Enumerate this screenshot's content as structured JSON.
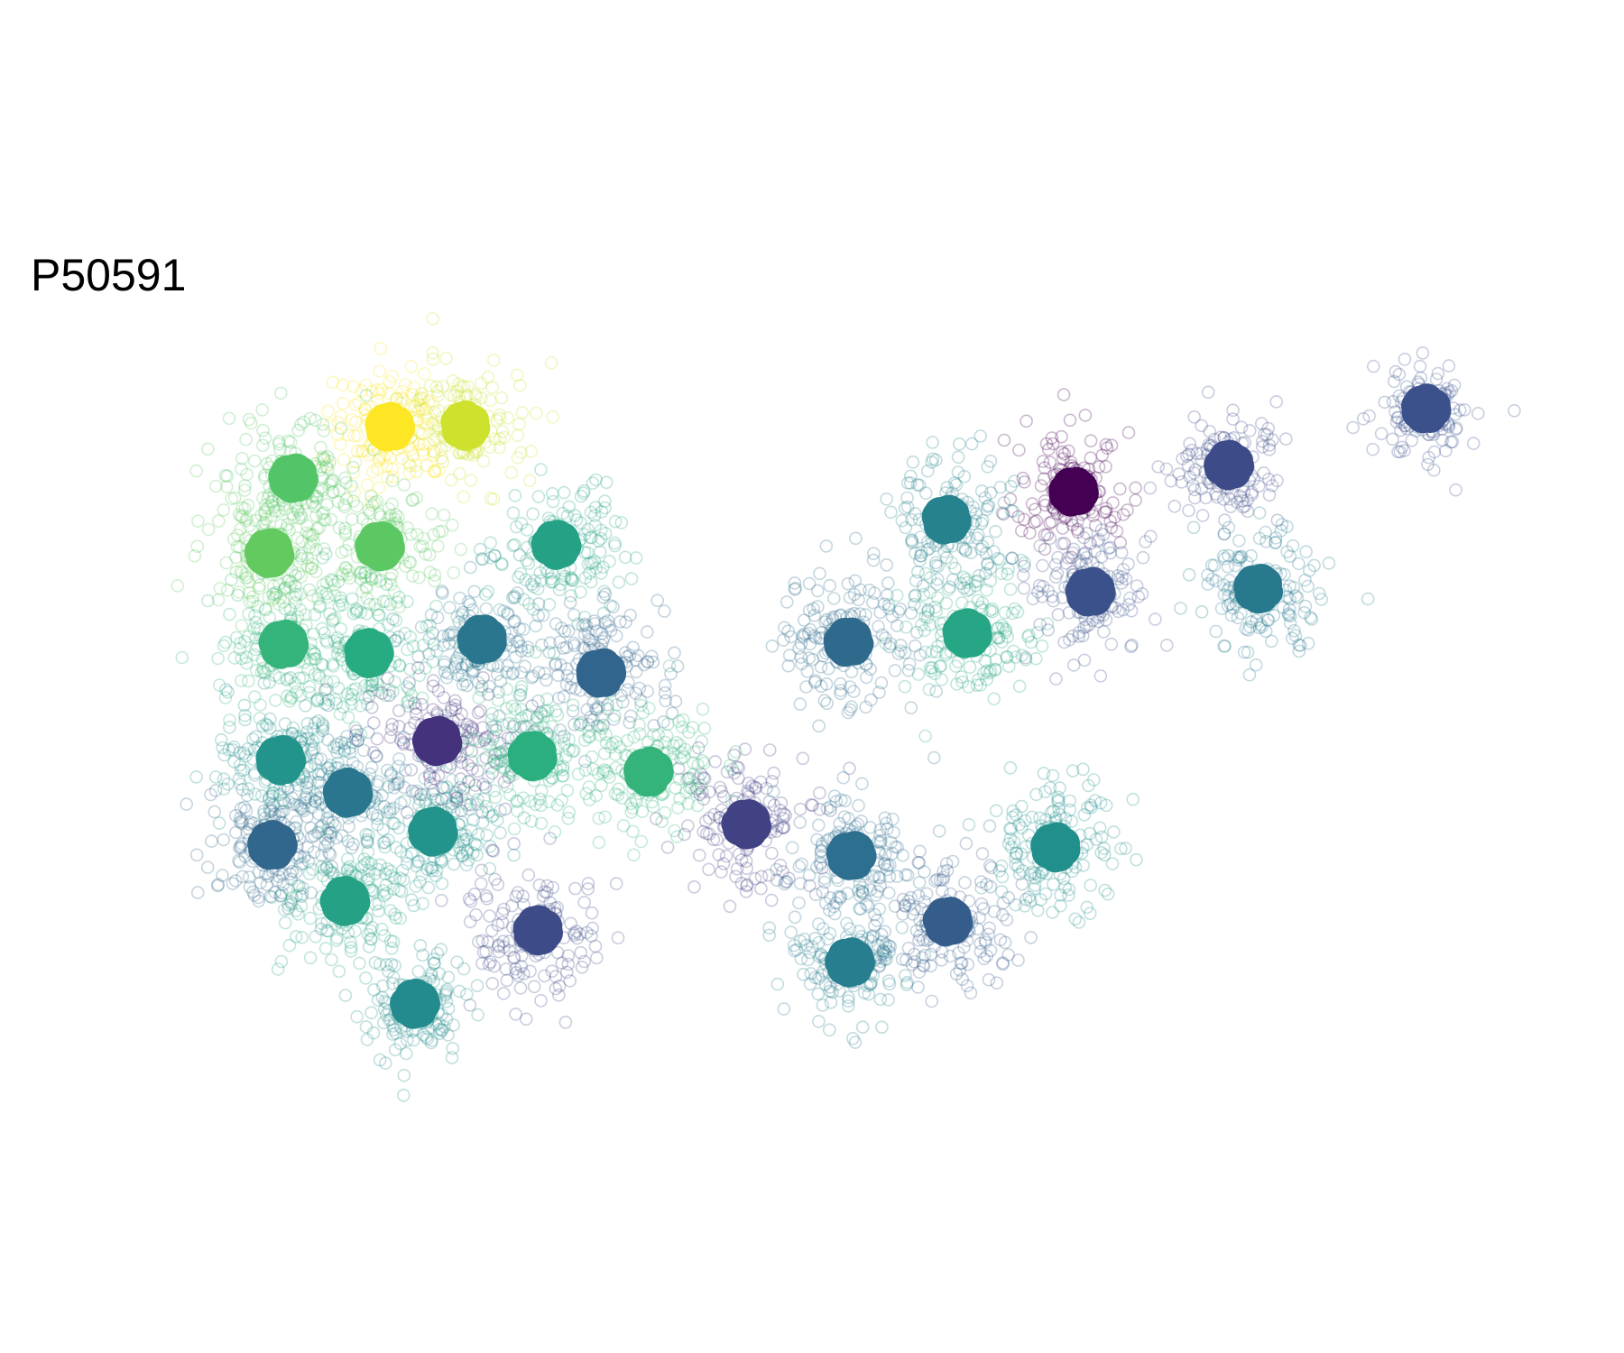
{
  "title": "P50591",
  "chart_data": {
    "type": "scatter",
    "title": "P50591",
    "xlabel": "",
    "ylabel": "",
    "grid": false,
    "legend": "none",
    "axes_visible": false,
    "xlim": [
      0,
      100
    ],
    "ylim": [
      0,
      100
    ],
    "colormap": "viridis",
    "point_style": "hollow circles at low opacity surrounding filled cluster centroids",
    "clusters": [
      {
        "x": 18.2,
        "y": 91.6,
        "spread": 3.9,
        "value": 1.0,
        "count": 140
      },
      {
        "x": 23.6,
        "y": 91.8,
        "spread": 4.1,
        "value": 0.93,
        "count": 140
      },
      {
        "x": 11.3,
        "y": 84.1,
        "spread": 4.2,
        "value": 0.73,
        "count": 140
      },
      {
        "x": 9.6,
        "y": 73.1,
        "spread": 4.2,
        "value": 0.76,
        "count": 150
      },
      {
        "x": 17.5,
        "y": 74.1,
        "spread": 4.4,
        "value": 0.75,
        "count": 150
      },
      {
        "x": 30.1,
        "y": 74.3,
        "spread": 4.4,
        "value": 0.58,
        "count": 150
      },
      {
        "x": 10.6,
        "y": 59.7,
        "spread": 4.4,
        "value": 0.66,
        "count": 150
      },
      {
        "x": 16.7,
        "y": 58.4,
        "spread": 4.4,
        "value": 0.62,
        "count": 150
      },
      {
        "x": 24.8,
        "y": 60.4,
        "spread": 4.4,
        "value": 0.4,
        "count": 150
      },
      {
        "x": 33.3,
        "y": 55.5,
        "spread": 4.4,
        "value": 0.33,
        "count": 150
      },
      {
        "x": 21.6,
        "y": 45.5,
        "spread": 4.4,
        "value": 0.15,
        "count": 150
      },
      {
        "x": 10.4,
        "y": 42.7,
        "spread": 4.2,
        "value": 0.52,
        "count": 150
      },
      {
        "x": 15.2,
        "y": 37.9,
        "spread": 4.2,
        "value": 0.4,
        "count": 150
      },
      {
        "x": 9.8,
        "y": 30.2,
        "spread": 4.0,
        "value": 0.34,
        "count": 150
      },
      {
        "x": 21.3,
        "y": 32.2,
        "spread": 4.2,
        "value": 0.52,
        "count": 150
      },
      {
        "x": 15.0,
        "y": 22.0,
        "spread": 4.2,
        "value": 0.58,
        "count": 150
      },
      {
        "x": 28.4,
        "y": 43.3,
        "spread": 4.4,
        "value": 0.64,
        "count": 150
      },
      {
        "x": 36.7,
        "y": 41.0,
        "spread": 4.4,
        "value": 0.66,
        "count": 150
      },
      {
        "x": 28.8,
        "y": 17.7,
        "spread": 4.4,
        "value": 0.23,
        "count": 150
      },
      {
        "x": 20.0,
        "y": 6.9,
        "spread": 3.6,
        "value": 0.48,
        "count": 130
      },
      {
        "x": 43.7,
        "y": 33.3,
        "spread": 4.2,
        "value": 0.2,
        "count": 150
      },
      {
        "x": 51.2,
        "y": 28.7,
        "spread": 4.2,
        "value": 0.37,
        "count": 150
      },
      {
        "x": 51.1,
        "y": 13.0,
        "spread": 3.8,
        "value": 0.43,
        "count": 140
      },
      {
        "x": 58.1,
        "y": 19.0,
        "spread": 4.2,
        "value": 0.3,
        "count": 150
      },
      {
        "x": 65.8,
        "y": 29.9,
        "spread": 4.4,
        "value": 0.5,
        "count": 150
      },
      {
        "x": 51.0,
        "y": 60.0,
        "spread": 4.6,
        "value": 0.35,
        "count": 160
      },
      {
        "x": 59.5,
        "y": 61.3,
        "spread": 4.4,
        "value": 0.6,
        "count": 150
      },
      {
        "x": 58.0,
        "y": 78.0,
        "spread": 4.2,
        "value": 0.45,
        "count": 150
      },
      {
        "x": 67.1,
        "y": 82.1,
        "spread": 3.8,
        "value": 0.0,
        "count": 140
      },
      {
        "x": 68.3,
        "y": 67.4,
        "spread": 4.0,
        "value": 0.25,
        "count": 150
      },
      {
        "x": 78.2,
        "y": 86.0,
        "spread": 3.4,
        "value": 0.23,
        "count": 130
      },
      {
        "x": 80.3,
        "y": 67.9,
        "spread": 4.0,
        "value": 0.41,
        "count": 150
      },
      {
        "x": 92.3,
        "y": 94.3,
        "spread": 3.2,
        "value": 0.25,
        "count": 120
      }
    ]
  }
}
